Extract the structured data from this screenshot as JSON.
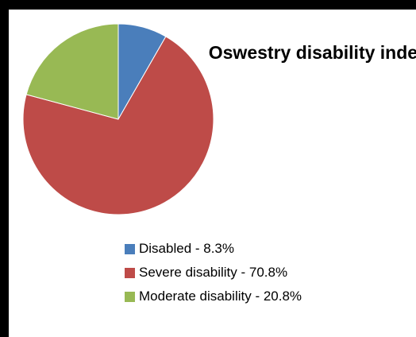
{
  "chart_data": {
    "type": "pie",
    "title": "Oswestry disability index.",
    "slices": [
      {
        "label": "Disabled - 8.3%",
        "value": 8.3,
        "color": "#4a7ebb"
      },
      {
        "label": "Severe disability - 70.8%",
        "value": 70.8,
        "color": "#be4b48"
      },
      {
        "label": "Moderate disability - 20.8%",
        "value": 20.8,
        "color": "#98b954"
      }
    ],
    "legend_position": "bottom"
  }
}
